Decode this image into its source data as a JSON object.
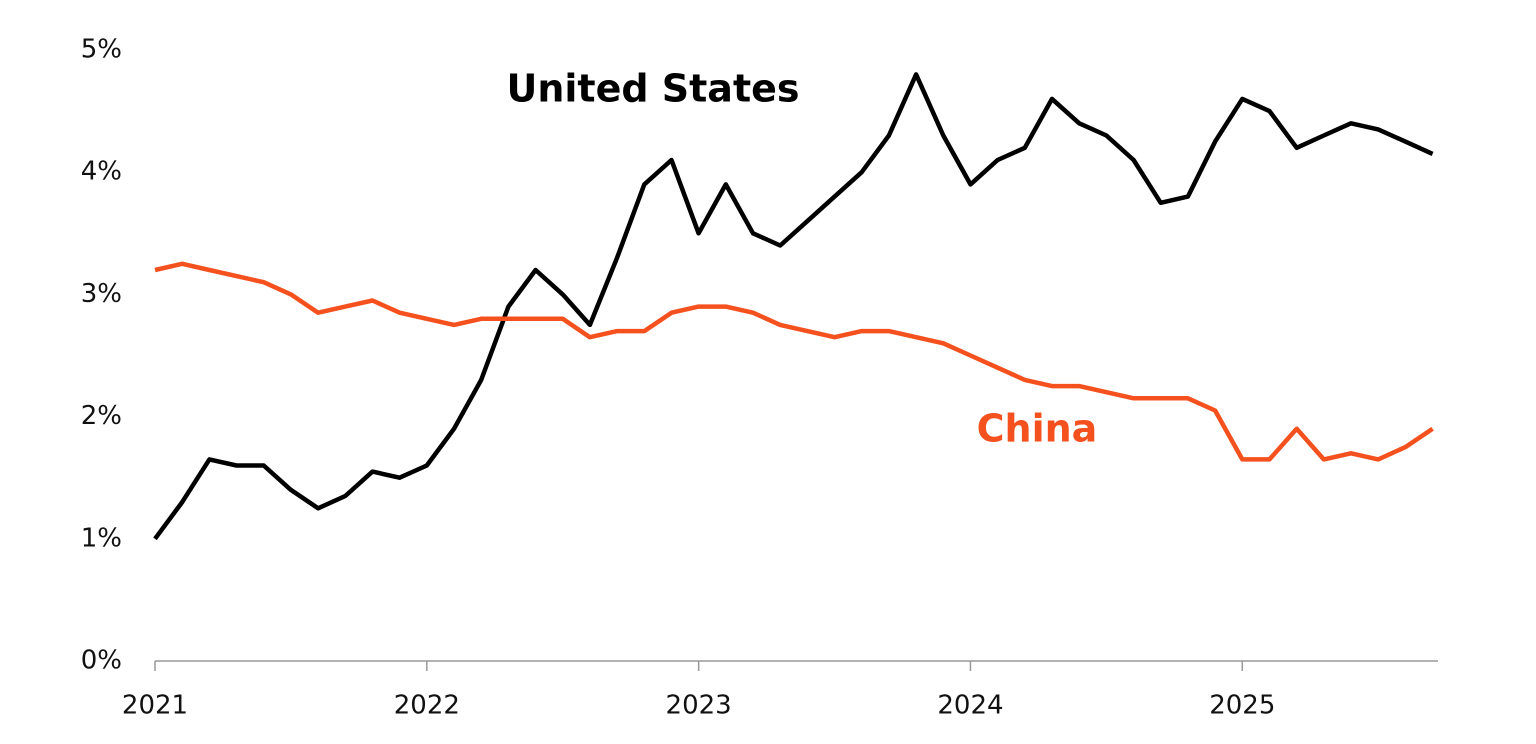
{
  "chart_data": {
    "type": "line",
    "x": [
      2021.0,
      2021.1,
      2021.2,
      2021.3,
      2021.4,
      2021.5,
      2021.6,
      2021.7,
      2021.8,
      2021.9,
      2022.0,
      2022.1,
      2022.2,
      2022.3,
      2022.4,
      2022.5,
      2022.6,
      2022.7,
      2022.8,
      2022.9,
      2023.0,
      2023.1,
      2023.2,
      2023.3,
      2023.4,
      2023.5,
      2023.6,
      2023.7,
      2023.8,
      2023.9,
      2024.0,
      2024.1,
      2024.2,
      2024.3,
      2024.4,
      2024.5,
      2024.6,
      2024.7,
      2024.8,
      2024.9,
      2025.0,
      2025.1,
      2025.2,
      2025.3,
      2025.4,
      2025.5,
      2025.6,
      2025.7
    ],
    "series": [
      {
        "name": "United States",
        "color": "#000000",
        "values": [
          1.0,
          1.3,
          1.65,
          1.6,
          1.6,
          1.4,
          1.25,
          1.35,
          1.55,
          1.5,
          1.6,
          1.9,
          2.3,
          2.9,
          3.2,
          3.0,
          2.75,
          3.3,
          3.9,
          4.1,
          3.5,
          3.9,
          3.5,
          3.4,
          3.6,
          3.8,
          4.0,
          4.3,
          4.8,
          4.3,
          3.9,
          4.1,
          4.2,
          4.6,
          4.4,
          4.3,
          4.1,
          3.75,
          3.8,
          4.25,
          4.6,
          4.5,
          4.2,
          4.3,
          4.4,
          4.35,
          4.25,
          4.15
        ]
      },
      {
        "name": "China",
        "color": "#f4511e",
        "values": [
          3.2,
          3.25,
          3.2,
          3.15,
          3.1,
          3.0,
          2.85,
          2.9,
          2.95,
          2.85,
          2.8,
          2.75,
          2.8,
          2.8,
          2.8,
          2.8,
          2.65,
          2.7,
          2.7,
          2.85,
          2.9,
          2.9,
          2.85,
          2.75,
          2.7,
          2.65,
          2.7,
          2.7,
          2.65,
          2.6,
          2.5,
          2.4,
          2.3,
          2.25,
          2.25,
          2.2,
          2.15,
          2.15,
          2.15,
          2.05,
          1.65,
          1.65,
          1.9,
          1.65,
          1.7,
          1.65,
          1.75,
          1.9
        ]
      }
    ],
    "xlim": [
      2021,
      2025.72
    ],
    "xticks": [
      2021,
      2022,
      2023,
      2024,
      2025
    ],
    "ylim": [
      0,
      5
    ],
    "yticks": [
      {
        "value": 0,
        "label": "0%"
      },
      {
        "value": 1,
        "label": "1%"
      },
      {
        "value": 2,
        "label": "2%"
      },
      {
        "value": 3,
        "label": "3%"
      },
      {
        "value": 4,
        "label": "4%"
      },
      {
        "value": 5,
        "label": "5%"
      }
    ]
  }
}
